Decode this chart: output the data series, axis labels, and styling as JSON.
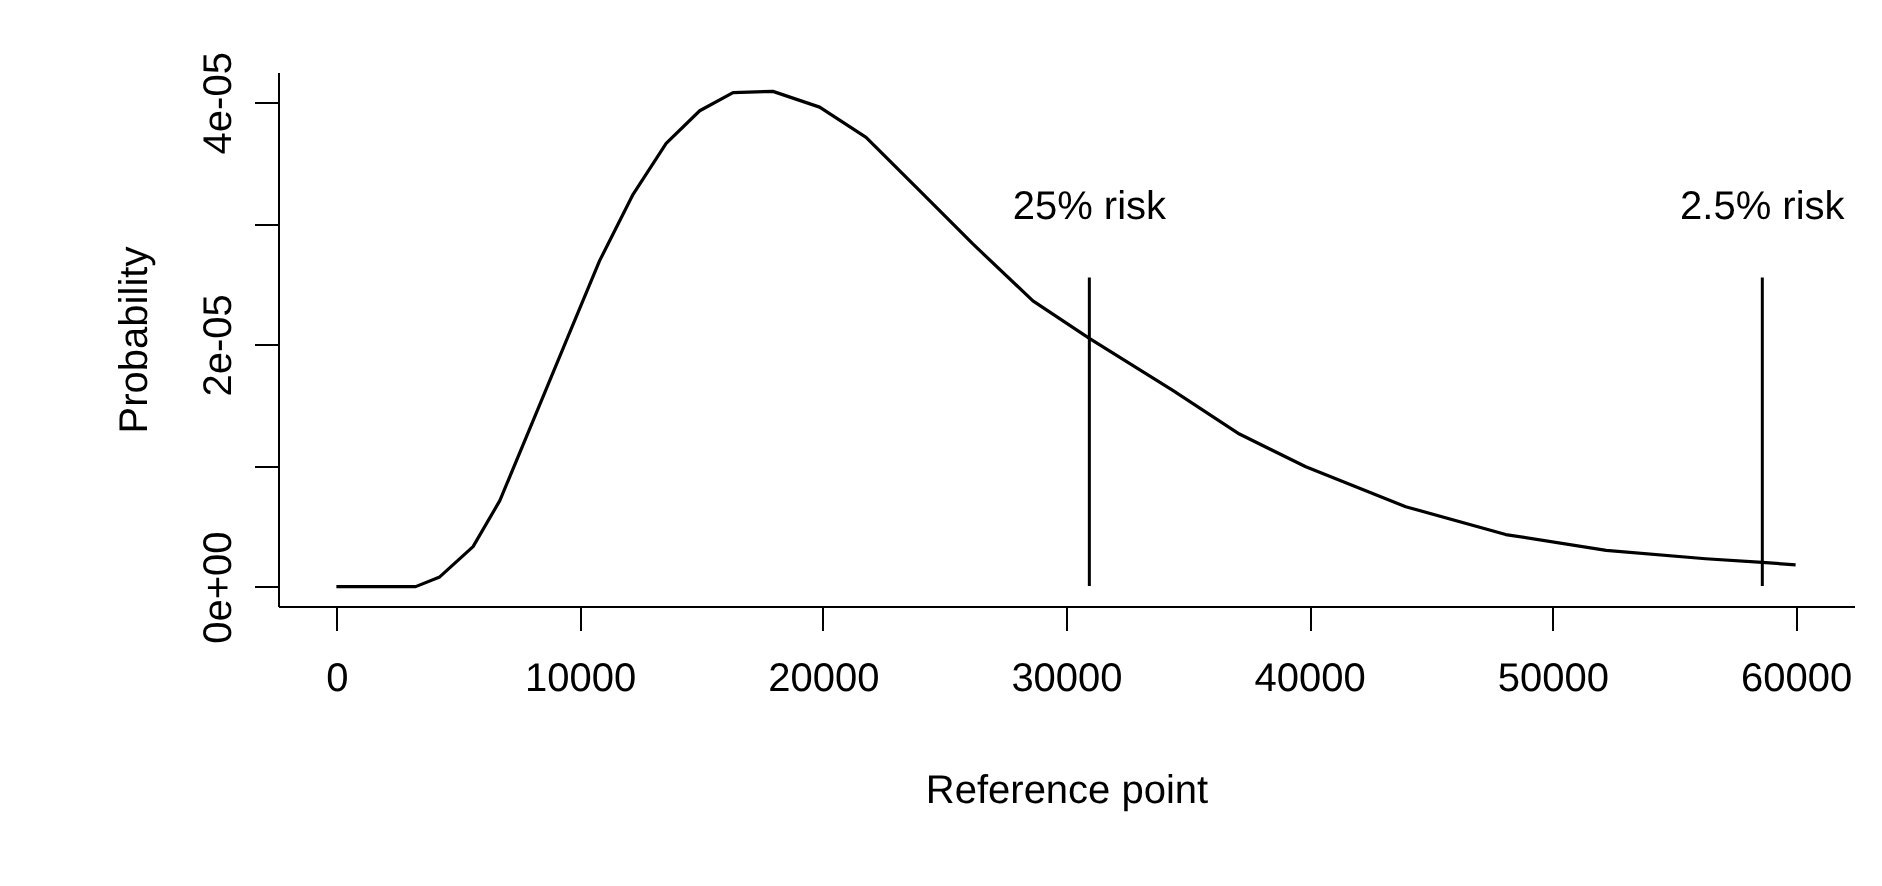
{
  "chart_data": {
    "type": "line",
    "xlabel": "Reference point",
    "ylabel": "Probability",
    "xlim": [
      -2400,
      62400
    ],
    "ylim": [
      -1.6e-06,
      4.25e-05
    ],
    "xticks": [
      0,
      10000,
      20000,
      30000,
      40000,
      50000,
      60000
    ],
    "yticks": [
      {
        "value": 0,
        "label": "0e+00"
      },
      {
        "value": 1e-05,
        "label": null
      },
      {
        "value": 2e-05,
        "label": "2e-05"
      },
      {
        "value": 3e-05,
        "label": null
      },
      {
        "value": 4e-05,
        "label": "4e-05"
      }
    ],
    "grid": false,
    "marker": "none",
    "line_style": "solid",
    "series": [
      {
        "color": "#000000",
        "x": [
          0,
          3260,
          4250,
          5620,
          6720,
          8090,
          9450,
          10820,
          12200,
          13560,
          14940,
          16310,
          17950,
          19870,
          21780,
          23980,
          26170,
          28640,
          30960,
          34390,
          37130,
          39860,
          43970,
          48080,
          52210,
          56300,
          58630,
          60000
        ],
        "values": [
          0,
          0,
          8e-07,
          3.3e-06,
          7.1e-06,
          1.37e-05,
          2.03e-05,
          2.69e-05,
          3.24e-05,
          3.66e-05,
          3.93e-05,
          4.08e-05,
          4.09e-05,
          3.96e-05,
          3.71e-05,
          3.27e-05,
          2.83e-05,
          2.36e-05,
          2.05e-05,
          1.62e-05,
          1.26e-05,
          9.9e-06,
          6.6e-06,
          4.3e-06,
          3e-06,
          2.3e-06,
          2e-06,
          1.8e-06
        ]
      }
    ],
    "ref_lines": [
      {
        "axis": "x",
        "value": 30960,
        "label": "25% risk",
        "color": "#000000"
      },
      {
        "axis": "x",
        "value": 58630,
        "label": "2.5% risk",
        "color": "#000000"
      }
    ]
  }
}
